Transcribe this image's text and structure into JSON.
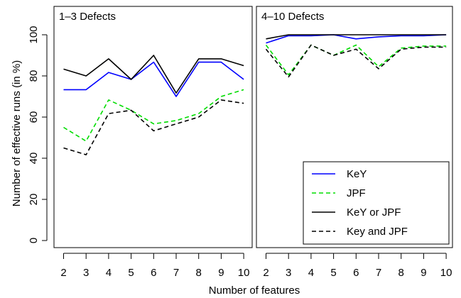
{
  "xlabel": "Number of features",
  "ylabel": "Number of effective runs (in %)",
  "colors": {
    "key": "#0000ff",
    "jpf": "#00dd00",
    "either": "#000000",
    "both": "#000000"
  },
  "legend": {
    "placement": "bottom-right of right panel",
    "entries": [
      "KeY",
      "JPF",
      "KeY or JPF",
      "Key and JPF"
    ]
  },
  "chart_data": [
    {
      "type": "line",
      "title": "1–3 Defects",
      "x": [
        2,
        3,
        4,
        5,
        6,
        7,
        8,
        9,
        10
      ],
      "ylim": [
        0,
        100
      ],
      "yticks": [
        0,
        20,
        40,
        60,
        80,
        100
      ],
      "grid": false,
      "series": [
        {
          "name": "KeY",
          "style": "solid",
          "color": "#0000ff",
          "values": [
            73.3,
            73.3,
            81.7,
            78.3,
            86.7,
            70.0,
            86.7,
            86.7,
            78.3
          ]
        },
        {
          "name": "JPF",
          "style": "dashed",
          "color": "#00dd00",
          "values": [
            55.0,
            48.3,
            68.3,
            63.3,
            56.7,
            58.3,
            61.7,
            70.0,
            73.3
          ]
        },
        {
          "name": "KeY or JPF",
          "style": "solid",
          "color": "#000000",
          "values": [
            83.3,
            80.0,
            88.3,
            78.3,
            90.0,
            71.7,
            88.3,
            88.3,
            85.0
          ]
        },
        {
          "name": "Key and JPF",
          "style": "dashed",
          "color": "#000000",
          "values": [
            45.0,
            41.7,
            61.7,
            63.3,
            53.3,
            56.7,
            60.0,
            68.3,
            66.7
          ]
        }
      ]
    },
    {
      "type": "line",
      "title": "4–10 Defects",
      "x": [
        2,
        3,
        4,
        5,
        6,
        7,
        8,
        9,
        10
      ],
      "ylim": [
        0,
        100
      ],
      "grid": false,
      "series": [
        {
          "name": "KeY",
          "style": "solid",
          "color": "#0000ff",
          "values": [
            96.0,
            99.5,
            99.5,
            100.0,
            98.0,
            99.0,
            99.5,
            99.5,
            100.0
          ]
        },
        {
          "name": "JPF",
          "style": "dashed",
          "color": "#00dd00",
          "values": [
            95.0,
            80.5,
            95.0,
            90.0,
            95.0,
            84.5,
            93.5,
            94.5,
            94.5
          ]
        },
        {
          "name": "KeY or JPF",
          "style": "solid",
          "color": "#000000",
          "values": [
            98.0,
            100.0,
            100.0,
            100.0,
            100.0,
            100.0,
            100.0,
            100.0,
            100.0
          ]
        },
        {
          "name": "Key and JPF",
          "style": "dashed",
          "color": "#000000",
          "values": [
            93.0,
            79.5,
            95.0,
            90.0,
            93.0,
            83.5,
            93.0,
            94.0,
            94.0
          ]
        }
      ]
    }
  ]
}
